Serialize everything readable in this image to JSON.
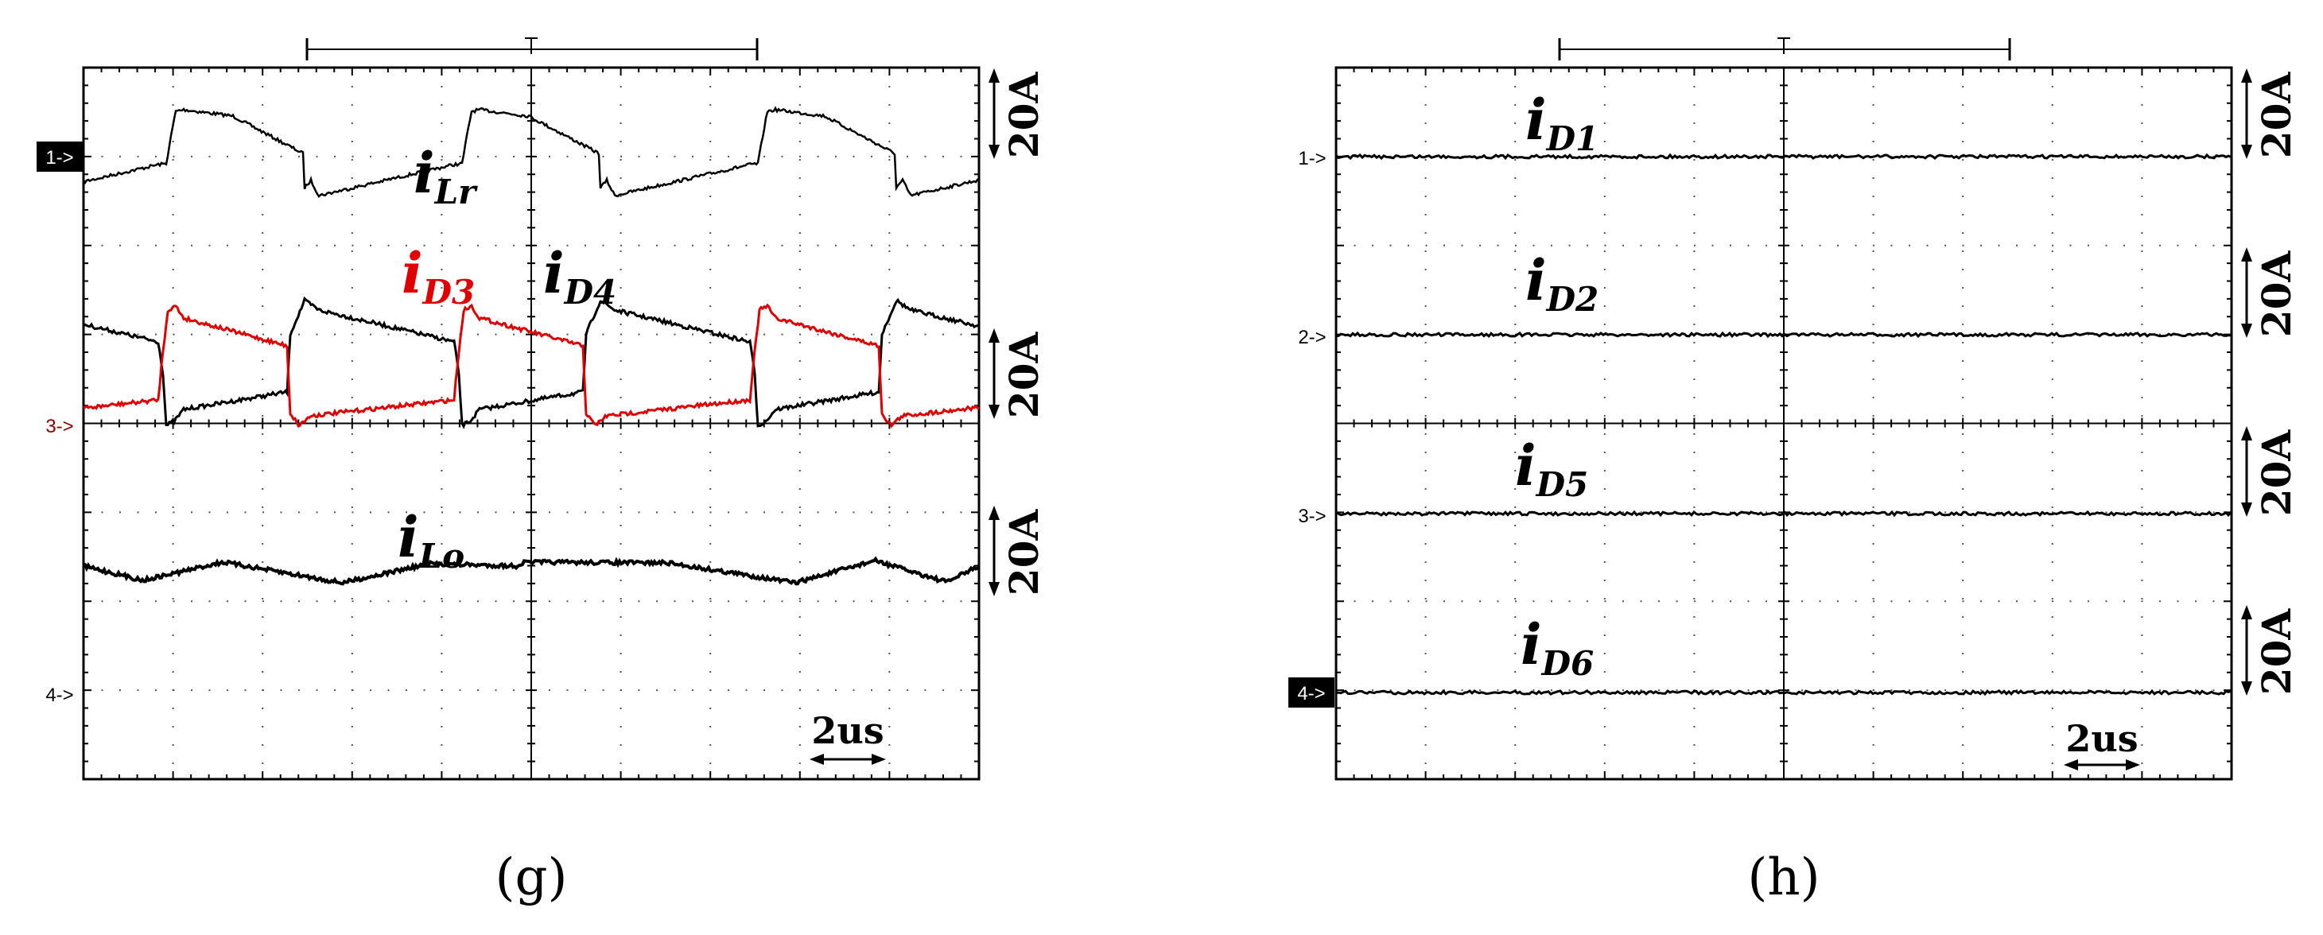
{
  "chart_data": [
    {
      "type": "line",
      "panel": "g",
      "caption": "(g)",
      "scale_label": "20A",
      "time_label": "2us",
      "channels": [
        {
          "marker": "1->",
          "marker_inverted": true
        },
        {
          "marker": "3->",
          "marker_inverted": false
        },
        {
          "marker": "4->",
          "marker_inverted": false
        }
      ],
      "series": [
        {
          "name": "iLr",
          "label_main": "i",
          "label_sub": "Lr",
          "color": "#000000"
        },
        {
          "name": "iD3",
          "label_main": "i",
          "label_sub": "D3",
          "color": "#e00000"
        },
        {
          "name": "iD4",
          "label_main": "i",
          "label_sub": "D4",
          "color": "#000000"
        },
        {
          "name": "iLo",
          "label_main": "i",
          "label_sub": "Lo",
          "color": "#000000"
        }
      ]
    },
    {
      "type": "line",
      "panel": "h",
      "caption": "(h)",
      "scale_label": "20A",
      "time_label": "2us",
      "channels": [
        {
          "marker": "1->",
          "marker_inverted": false
        },
        {
          "marker": "2->",
          "marker_inverted": false
        },
        {
          "marker": "3->",
          "marker_inverted": false
        },
        {
          "marker": "4->",
          "marker_inverted": true
        }
      ],
      "series": [
        {
          "name": "iD1",
          "label_main": "i",
          "label_sub": "D1",
          "color": "#000000"
        },
        {
          "name": "iD2",
          "label_main": "i",
          "label_sub": "D2",
          "color": "#000000"
        },
        {
          "name": "iD5",
          "label_main": "i",
          "label_sub": "D5",
          "color": "#000000"
        },
        {
          "name": "iD6",
          "label_main": "i",
          "label_sub": "D6",
          "color": "#000000"
        }
      ]
    }
  ]
}
